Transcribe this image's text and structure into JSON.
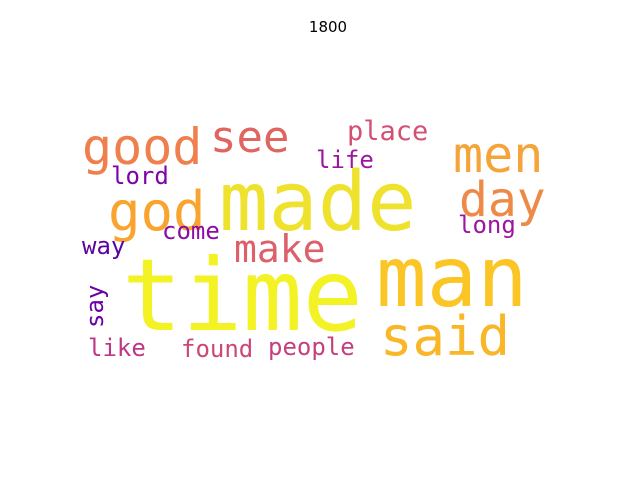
{
  "title": "1800",
  "words": [
    {
      "text": "time",
      "color": "#f2f224"
    },
    {
      "text": "made",
      "color": "#efe22e"
    },
    {
      "text": "man",
      "color": "#fbc526"
    },
    {
      "text": "said",
      "color": "#f9b627"
    },
    {
      "text": "god",
      "color": "#f8a42e"
    },
    {
      "text": "good",
      "color": "#ef7f4c"
    },
    {
      "text": "men",
      "color": "#f5a43a"
    },
    {
      "text": "day",
      "color": "#ee8a48"
    },
    {
      "text": "see",
      "color": "#e0645f"
    },
    {
      "text": "make",
      "color": "#dd5f6a"
    },
    {
      "text": "place",
      "color": "#d45072"
    },
    {
      "text": "life",
      "color": "#9c179e"
    },
    {
      "text": "lord",
      "color": "#7e03a8"
    },
    {
      "text": "long",
      "color": "#9c179e"
    },
    {
      "text": "come",
      "color": "#8a0ca5"
    },
    {
      "text": "way",
      "color": "#5b02a3"
    },
    {
      "text": "say",
      "color": "#6a00a8"
    },
    {
      "text": "like",
      "color": "#bd3786"
    },
    {
      "text": "found",
      "color": "#cc4778"
    },
    {
      "text": "people",
      "color": "#c5407e"
    }
  ]
}
